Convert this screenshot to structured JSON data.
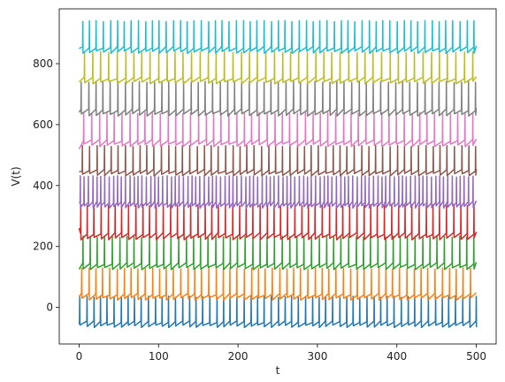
{
  "chart_data": {
    "type": "line",
    "title": "",
    "xlabel": "t",
    "ylabel": "V(t)",
    "xlim": [
      -25,
      525
    ],
    "ylim": [
      -120,
      980
    ],
    "xticks": [
      0,
      100,
      200,
      300,
      400,
      500
    ],
    "yticks": [
      0,
      200,
      400,
      600,
      800
    ],
    "grid": false,
    "legend": "none",
    "t_range": [
      0,
      500
    ],
    "series": [
      {
        "color": "#1f77b4",
        "rest": -62,
        "peak": 35,
        "onset": -55,
        "period": 8.6,
        "phase": 0.0
      },
      {
        "color": "#ff7f0e",
        "rest": 28,
        "peak": 128,
        "onset": 36,
        "period": 8.9,
        "phase": 2.5
      },
      {
        "color": "#2ca02c",
        "rest": 128,
        "peak": 232,
        "onset": 125,
        "period": 9.3,
        "phase": 4.1
      },
      {
        "color": "#d62728",
        "rest": 226,
        "peak": 335,
        "onset": 260,
        "period": 8.7,
        "phase": 1.3
      },
      {
        "color": "#9467bd",
        "rest": 330,
        "peak": 430,
        "onset": 345,
        "period": 5.2,
        "phase": 0.7
      },
      {
        "color": "#8c564b",
        "rest": 436,
        "peak": 530,
        "onset": 445,
        "period": 9.0,
        "phase": 3.3
      },
      {
        "color": "#e377c2",
        "rest": 532,
        "peak": 638,
        "onset": 520,
        "period": 9.6,
        "phase": 5.0
      },
      {
        "color": "#7f7f7f",
        "rest": 632,
        "peak": 740,
        "onset": 640,
        "period": 9.2,
        "phase": 1.8
      },
      {
        "color": "#bcbd22",
        "rest": 738,
        "peak": 838,
        "onset": 740,
        "period": 10.4,
        "phase": 6.0
      },
      {
        "color": "#17becf",
        "rest": 838,
        "peak": 940,
        "onset": 850,
        "period": 8.8,
        "phase": 3.9
      }
    ]
  }
}
